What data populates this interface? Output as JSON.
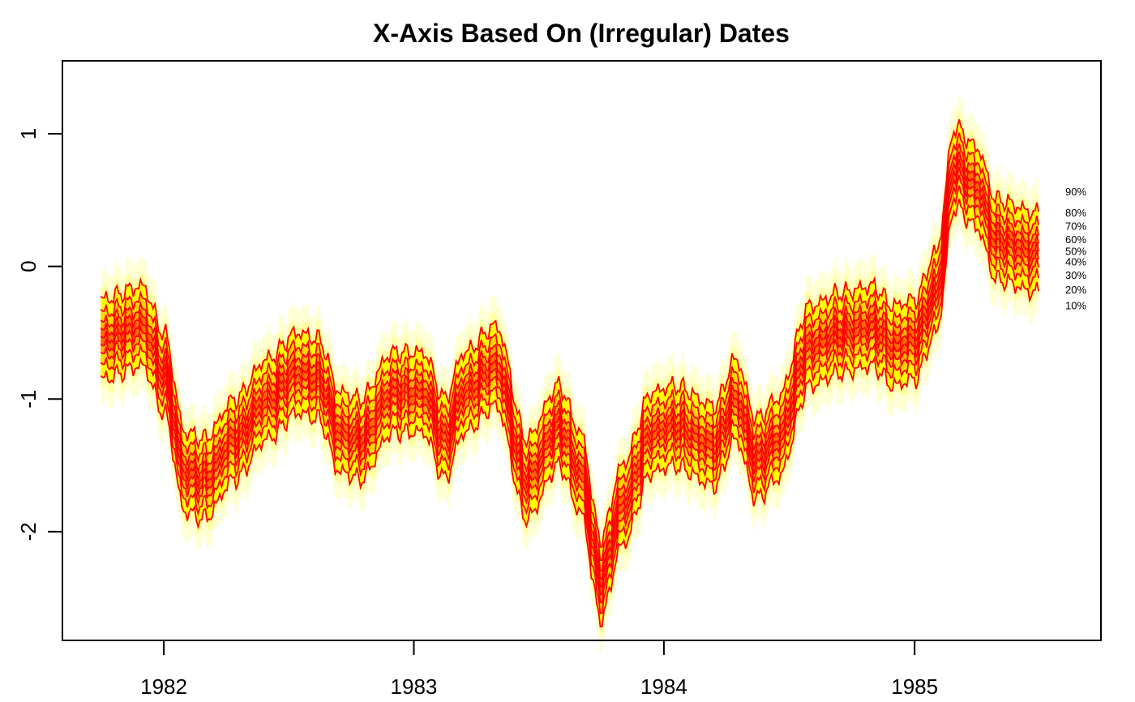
{
  "chart_data": {
    "type": "area",
    "title": "X-Axis Based On (Irregular) Dates",
    "xlabel": "",
    "ylabel": "",
    "x_ticks": [
      "1982",
      "1983",
      "1984",
      "1985"
    ],
    "y_ticks": [
      "-2",
      "-1",
      "0",
      "1"
    ],
    "xlim": [
      "1981-08-06",
      "1985-09-30"
    ],
    "ylim": [
      -2.82,
      1.55
    ],
    "grid": false,
    "legend": "right, percentile labels at series end",
    "colors": {
      "outer": "#ffff00",
      "inner": "#ff0000",
      "line": "#ff0000"
    },
    "fan_labels": [
      "90%",
      "80%",
      "70%",
      "60%",
      "50%",
      "40%",
      "30%",
      "20%",
      "10%"
    ],
    "fan_label_values": [
      0.56,
      0.4,
      0.3,
      0.2,
      0.11,
      0.03,
      -0.07,
      -0.18,
      -0.3
    ],
    "median": {
      "x": [
        "1981-10-01",
        "1981-12-01",
        "1982-01-01",
        "1982-02-01",
        "1982-03-01",
        "1982-04-15",
        "1982-06-01",
        "1982-07-15",
        "1982-08-15",
        "1982-09-15",
        "1982-10-15",
        "1982-12-01",
        "1983-01-15",
        "1983-02-15",
        "1983-03-15",
        "1983-05-01",
        "1983-06-15",
        "1983-08-01",
        "1983-09-01",
        "1983-10-01",
        "1983-11-01",
        "1983-12-15",
        "1984-01-15",
        "1984-03-15",
        "1984-04-15",
        "1984-05-15",
        "1984-06-15",
        "1984-08-01",
        "1984-09-15",
        "1984-11-01",
        "1984-12-01",
        "1985-01-01",
        "1985-02-01",
        "1985-03-01",
        "1985-04-01",
        "1985-05-01",
        "1985-07-01"
      ],
      "y": [
        -0.55,
        -0.45,
        -0.8,
        -1.55,
        -1.6,
        -1.3,
        -1.0,
        -0.8,
        -0.85,
        -1.25,
        -1.3,
        -0.95,
        -0.95,
        -1.3,
        -0.95,
        -0.75,
        -1.6,
        -1.2,
        -1.55,
        -2.35,
        -1.8,
        -1.25,
        -1.2,
        -1.35,
        -1.0,
        -1.45,
        -1.3,
        -0.6,
        -0.5,
        -0.45,
        -0.6,
        -0.55,
        -0.2,
        0.75,
        0.6,
        0.2,
        0.1
      ]
    },
    "band_offsets": [
      -0.3,
      -0.2,
      -0.12,
      -0.06,
      0,
      0.06,
      0.12,
      0.2,
      0.3
    ],
    "halo_offset": 0.5
  }
}
